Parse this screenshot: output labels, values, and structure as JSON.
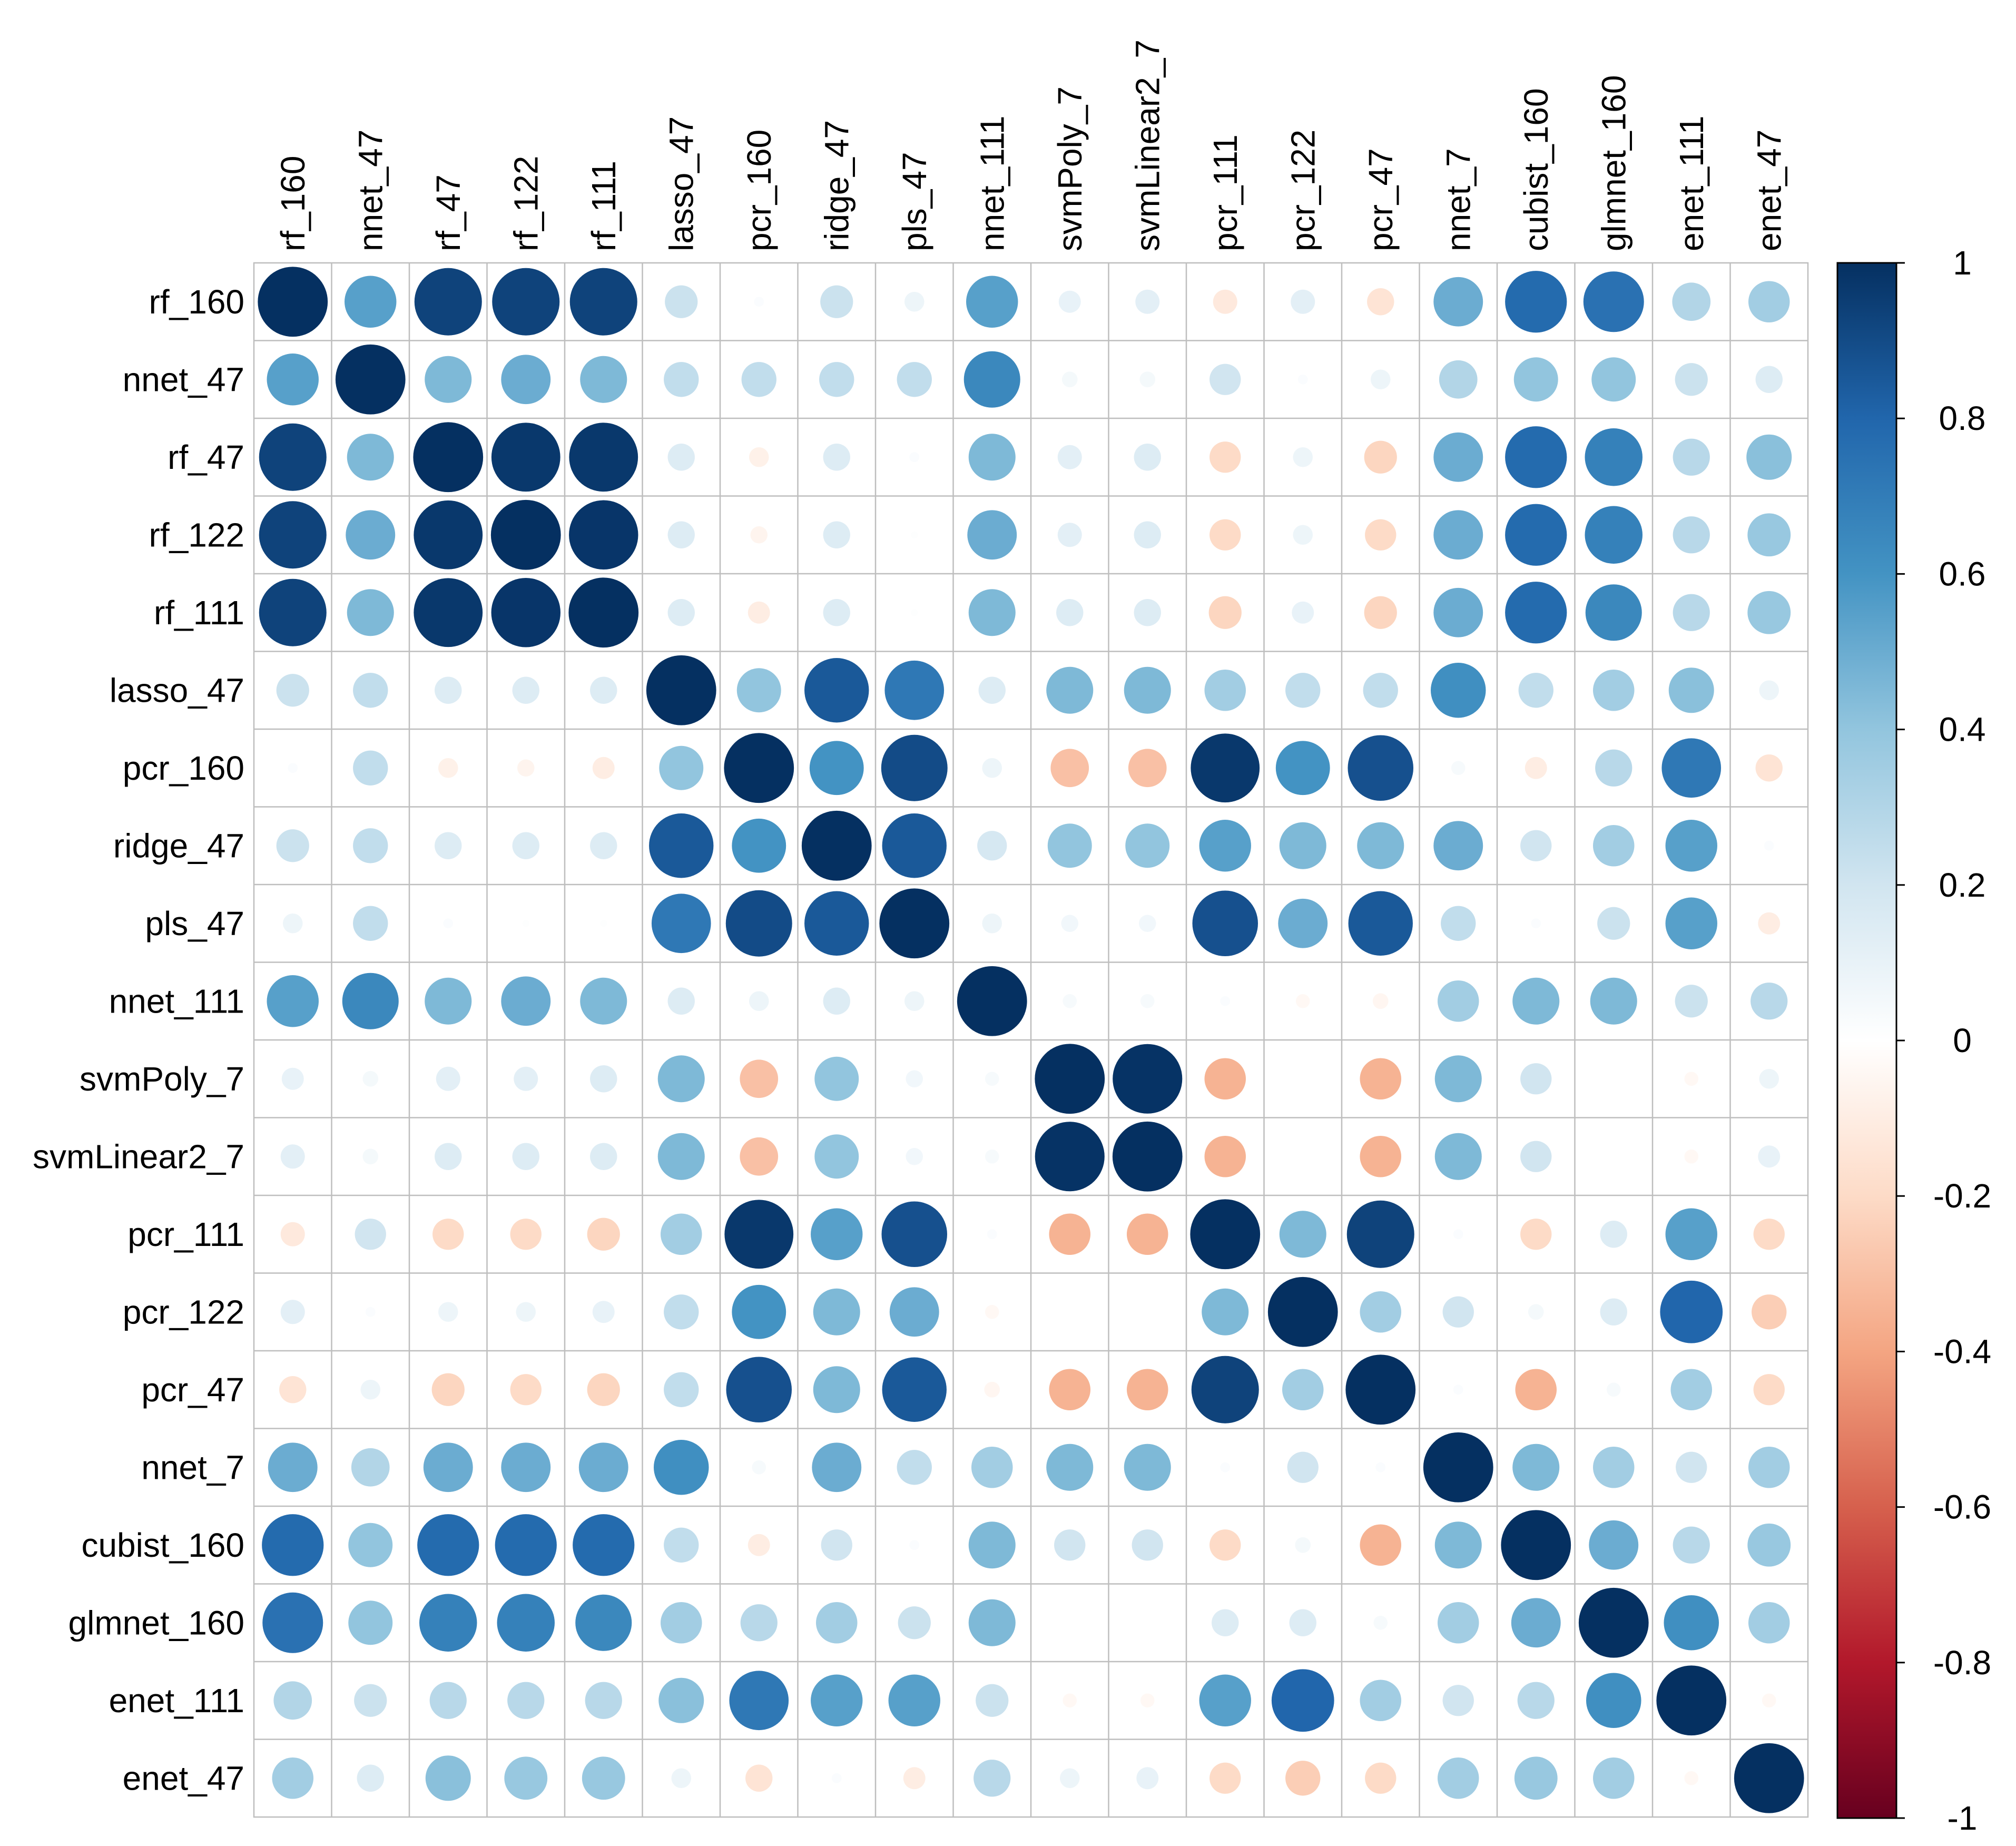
{
  "chart_data": {
    "type": "heatmap",
    "style": "corrplot-circle",
    "title": "",
    "labels": [
      "rf_160",
      "nnet_47",
      "rf_47",
      "rf_122",
      "rf_111",
      "lasso_47",
      "pcr_160",
      "ridge_47",
      "pls_47",
      "nnet_111",
      "svmPoly_7",
      "svmLinear2_7",
      "pcr_111",
      "pcr_122",
      "pcr_47",
      "nnet_7",
      "cubist_160",
      "glmnet_160",
      "enet_111",
      "enet_47"
    ],
    "matrix": [
      [
        1,
        0.55,
        0.93,
        0.93,
        0.93,
        0.22,
        0.02,
        0.22,
        0.08,
        0.55,
        0.1,
        0.12,
        -0.12,
        0.12,
        -0.15,
        0.5,
        0.78,
        0.75,
        0.3,
        0.35
      ],
      [
        0.55,
        1,
        0.45,
        0.5,
        0.45,
        0.25,
        0.25,
        0.25,
        0.25,
        0.65,
        0.05,
        0.05,
        0.2,
        0.02,
        0.08,
        0.3,
        0.4,
        0.4,
        0.22,
        0.15
      ],
      [
        0.93,
        0.45,
        1,
        0.97,
        0.97,
        0.15,
        -0.08,
        0.15,
        0.02,
        0.45,
        0.12,
        0.15,
        -0.2,
        0.08,
        -0.22,
        0.5,
        0.78,
        0.68,
        0.28,
        0.42
      ],
      [
        0.93,
        0.5,
        0.97,
        1,
        0.98,
        0.15,
        -0.06,
        0.15,
        0.01,
        0.5,
        0.12,
        0.15,
        -0.2,
        0.08,
        -0.2,
        0.5,
        0.78,
        0.68,
        0.28,
        0.38
      ],
      [
        0.93,
        0.45,
        0.97,
        0.98,
        1,
        0.15,
        -0.1,
        0.15,
        0.01,
        0.45,
        0.15,
        0.15,
        -0.22,
        0.1,
        -0.22,
        0.5,
        0.78,
        0.65,
        0.28,
        0.38
      ],
      [
        0.22,
        0.25,
        0.15,
        0.15,
        0.15,
        1,
        0.4,
        0.85,
        0.72,
        0.15,
        0.45,
        0.45,
        0.35,
        0.25,
        0.25,
        0.62,
        0.25,
        0.35,
        0.42,
        0.08
      ],
      [
        0.02,
        0.25,
        -0.08,
        -0.06,
        -0.1,
        0.4,
        1,
        0.6,
        0.9,
        0.08,
        -0.3,
        -0.3,
        0.97,
        0.6,
        0.88,
        0.04,
        -0.1,
        0.28,
        0.72,
        -0.15
      ],
      [
        0.22,
        0.25,
        0.15,
        0.15,
        0.15,
        0.85,
        0.6,
        1,
        0.85,
        0.18,
        0.4,
        0.4,
        0.55,
        0.45,
        0.45,
        0.5,
        0.2,
        0.35,
        0.55,
        0.02
      ],
      [
        0.08,
        0.25,
        0.02,
        0.01,
        0.01,
        0.72,
        0.9,
        0.85,
        1,
        0.08,
        0.06,
        0.06,
        0.88,
        0.5,
        0.85,
        0.25,
        0.02,
        0.22,
        0.55,
        -0.1
      ],
      [
        0.55,
        0.65,
        0.45,
        0.5,
        0.45,
        0.15,
        0.08,
        0.15,
        0.08,
        1,
        0.04,
        0.04,
        0.02,
        -0.04,
        -0.05,
        0.35,
        0.45,
        0.45,
        0.22,
        0.28
      ],
      [
        0.1,
        0.05,
        0.12,
        0.12,
        0.15,
        0.45,
        -0.3,
        0.4,
        0.06,
        0.04,
        1,
        0.99,
        -0.35,
        0.0,
        -0.35,
        0.45,
        0.2,
        0.0,
        -0.04,
        0.08
      ],
      [
        0.12,
        0.05,
        0.15,
        0.15,
        0.15,
        0.45,
        -0.3,
        0.4,
        0.06,
        0.04,
        0.99,
        1,
        -0.35,
        0.0,
        -0.35,
        0.45,
        0.2,
        0.0,
        -0.04,
        0.1
      ],
      [
        -0.12,
        0.2,
        -0.2,
        -0.2,
        -0.22,
        0.35,
        0.97,
        0.55,
        0.88,
        0.02,
        -0.35,
        -0.35,
        1,
        0.45,
        0.93,
        0.02,
        -0.2,
        0.15,
        0.55,
        -0.2
      ],
      [
        0.12,
        0.02,
        0.08,
        0.08,
        0.1,
        0.25,
        0.6,
        0.45,
        0.5,
        -0.04,
        0.0,
        0.0,
        0.45,
        1,
        0.35,
        0.2,
        0.05,
        0.15,
        0.8,
        -0.25
      ],
      [
        -0.15,
        0.08,
        -0.22,
        -0.2,
        -0.22,
        0.25,
        0.88,
        0.45,
        0.85,
        -0.05,
        -0.35,
        -0.35,
        0.93,
        0.35,
        1,
        0.02,
        -0.35,
        0.04,
        0.35,
        -0.2
      ],
      [
        0.5,
        0.3,
        0.5,
        0.5,
        0.5,
        0.62,
        0.04,
        0.5,
        0.25,
        0.35,
        0.45,
        0.45,
        0.02,
        0.2,
        0.02,
        1,
        0.45,
        0.35,
        0.2,
        0.35
      ],
      [
        0.78,
        0.4,
        0.78,
        0.78,
        0.78,
        0.25,
        -0.1,
        0.2,
        0.02,
        0.45,
        0.2,
        0.2,
        -0.2,
        0.05,
        -0.35,
        0.45,
        1,
        0.5,
        0.28,
        0.38
      ],
      [
        0.75,
        0.4,
        0.68,
        0.68,
        0.65,
        0.35,
        0.28,
        0.35,
        0.22,
        0.45,
        0.0,
        0.0,
        0.15,
        0.15,
        0.04,
        0.35,
        0.5,
        1,
        0.62,
        0.35
      ],
      [
        0.3,
        0.22,
        0.28,
        0.28,
        0.28,
        0.42,
        0.72,
        0.55,
        0.55,
        0.22,
        -0.04,
        -0.04,
        0.55,
        0.8,
        0.35,
        0.2,
        0.28,
        0.62,
        1,
        -0.04
      ],
      [
        0.35,
        0.15,
        0.42,
        0.38,
        0.38,
        0.08,
        -0.15,
        0.02,
        -0.1,
        0.28,
        0.08,
        0.1,
        -0.2,
        -0.25,
        -0.2,
        0.35,
        0.38,
        0.35,
        -0.04,
        1
      ]
    ],
    "colorbar": {
      "range": [
        -1,
        1
      ],
      "tick_labels": [
        "1",
        "0.8",
        "0.6",
        "0.4",
        "0.2",
        "0",
        "-0.2",
        "-0.4",
        "-0.6",
        "-0.8",
        "-1"
      ],
      "tick_values": [
        1,
        0.8,
        0.6,
        0.4,
        0.2,
        0,
        -0.2,
        -0.4,
        -0.6,
        -0.8,
        -1
      ]
    },
    "colors": {
      "negative_end": "#67001F",
      "neg_strong": "#B2182B",
      "neg_mid": "#D6604D",
      "neg_light": "#F4A582",
      "neg_pale": "#FDDBC7",
      "zero": "#FFFFFF",
      "pos_pale": "#D1E5F0",
      "pos_light": "#92C5DE",
      "pos_mid": "#4393C3",
      "pos_strong": "#2166AC",
      "positive_end": "#053061",
      "grid": "#BEBEBE",
      "border": "#000000"
    }
  }
}
